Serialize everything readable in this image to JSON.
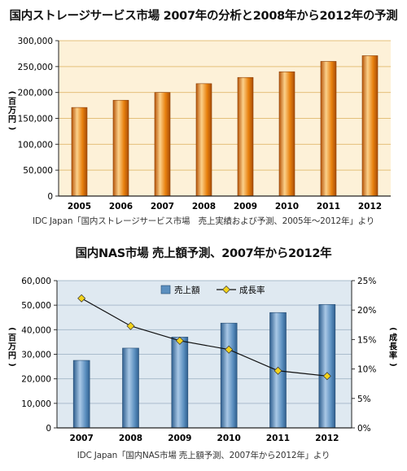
{
  "chart_data": [
    {
      "type": "bar",
      "title": "国内ストレージサービス市場 2007年の分析と2008年から2012年の予測",
      "ylabel": "(百万円)",
      "categories": [
        "2005",
        "2006",
        "2007",
        "2008",
        "2009",
        "2010",
        "2011",
        "2012"
      ],
      "values": [
        171000,
        185000,
        200000,
        217000,
        229000,
        240000,
        260000,
        271000
      ],
      "ylim": [
        0,
        300000
      ],
      "yticks": [
        "0",
        "50,000",
        "100,000",
        "150,000",
        "200,000",
        "250,000",
        "300,000"
      ],
      "grid": true,
      "source": "IDC Japan「国内ストレージサービス市場　売上実績および予測、2005年〜2012年」より",
      "colors": {
        "bar": "#e8810e",
        "bar_light": "#fbd08a",
        "background": "#fdf1d8",
        "grid": "#e4c07a"
      }
    },
    {
      "type": "bar+line",
      "title": "国内NAS市場 売上額予測、2007年から2012年",
      "categories": [
        "2007",
        "2008",
        "2009",
        "2010",
        "2011",
        "2012"
      ],
      "series": [
        {
          "name": "売上額",
          "type": "bar",
          "axis": "left",
          "values": [
            27500,
            32500,
            37000,
            42700,
            47000,
            50300
          ]
        },
        {
          "name": "成長率",
          "type": "line",
          "axis": "right",
          "values": [
            22.0,
            17.3,
            14.8,
            13.3,
            9.7,
            8.8
          ]
        }
      ],
      "ylabel_left": "(百万円)",
      "ylabel_right": "(成長率)",
      "ylim_left": [
        0,
        60000
      ],
      "ylim_right": [
        0,
        25
      ],
      "yticks_left": [
        "0",
        "10,000",
        "20,000",
        "30,000",
        "40,000",
        "50,000",
        "60,000"
      ],
      "yticks_right": [
        "0%",
        "5%",
        "10%",
        "15%",
        "20%",
        "25%"
      ],
      "grid": true,
      "legend_position": "top-center",
      "source": "IDC Japan「国内NAS市場 売上額予測、2007年から2012年」より",
      "colors": {
        "bar": "#5b8fbf",
        "bar_dark": "#2f5f8f",
        "bar_light": "#a9c8e6",
        "background": "#dfe9f1",
        "grid": "#aabccc",
        "line": "#111111",
        "marker": "#f2d21c"
      }
    }
  ]
}
